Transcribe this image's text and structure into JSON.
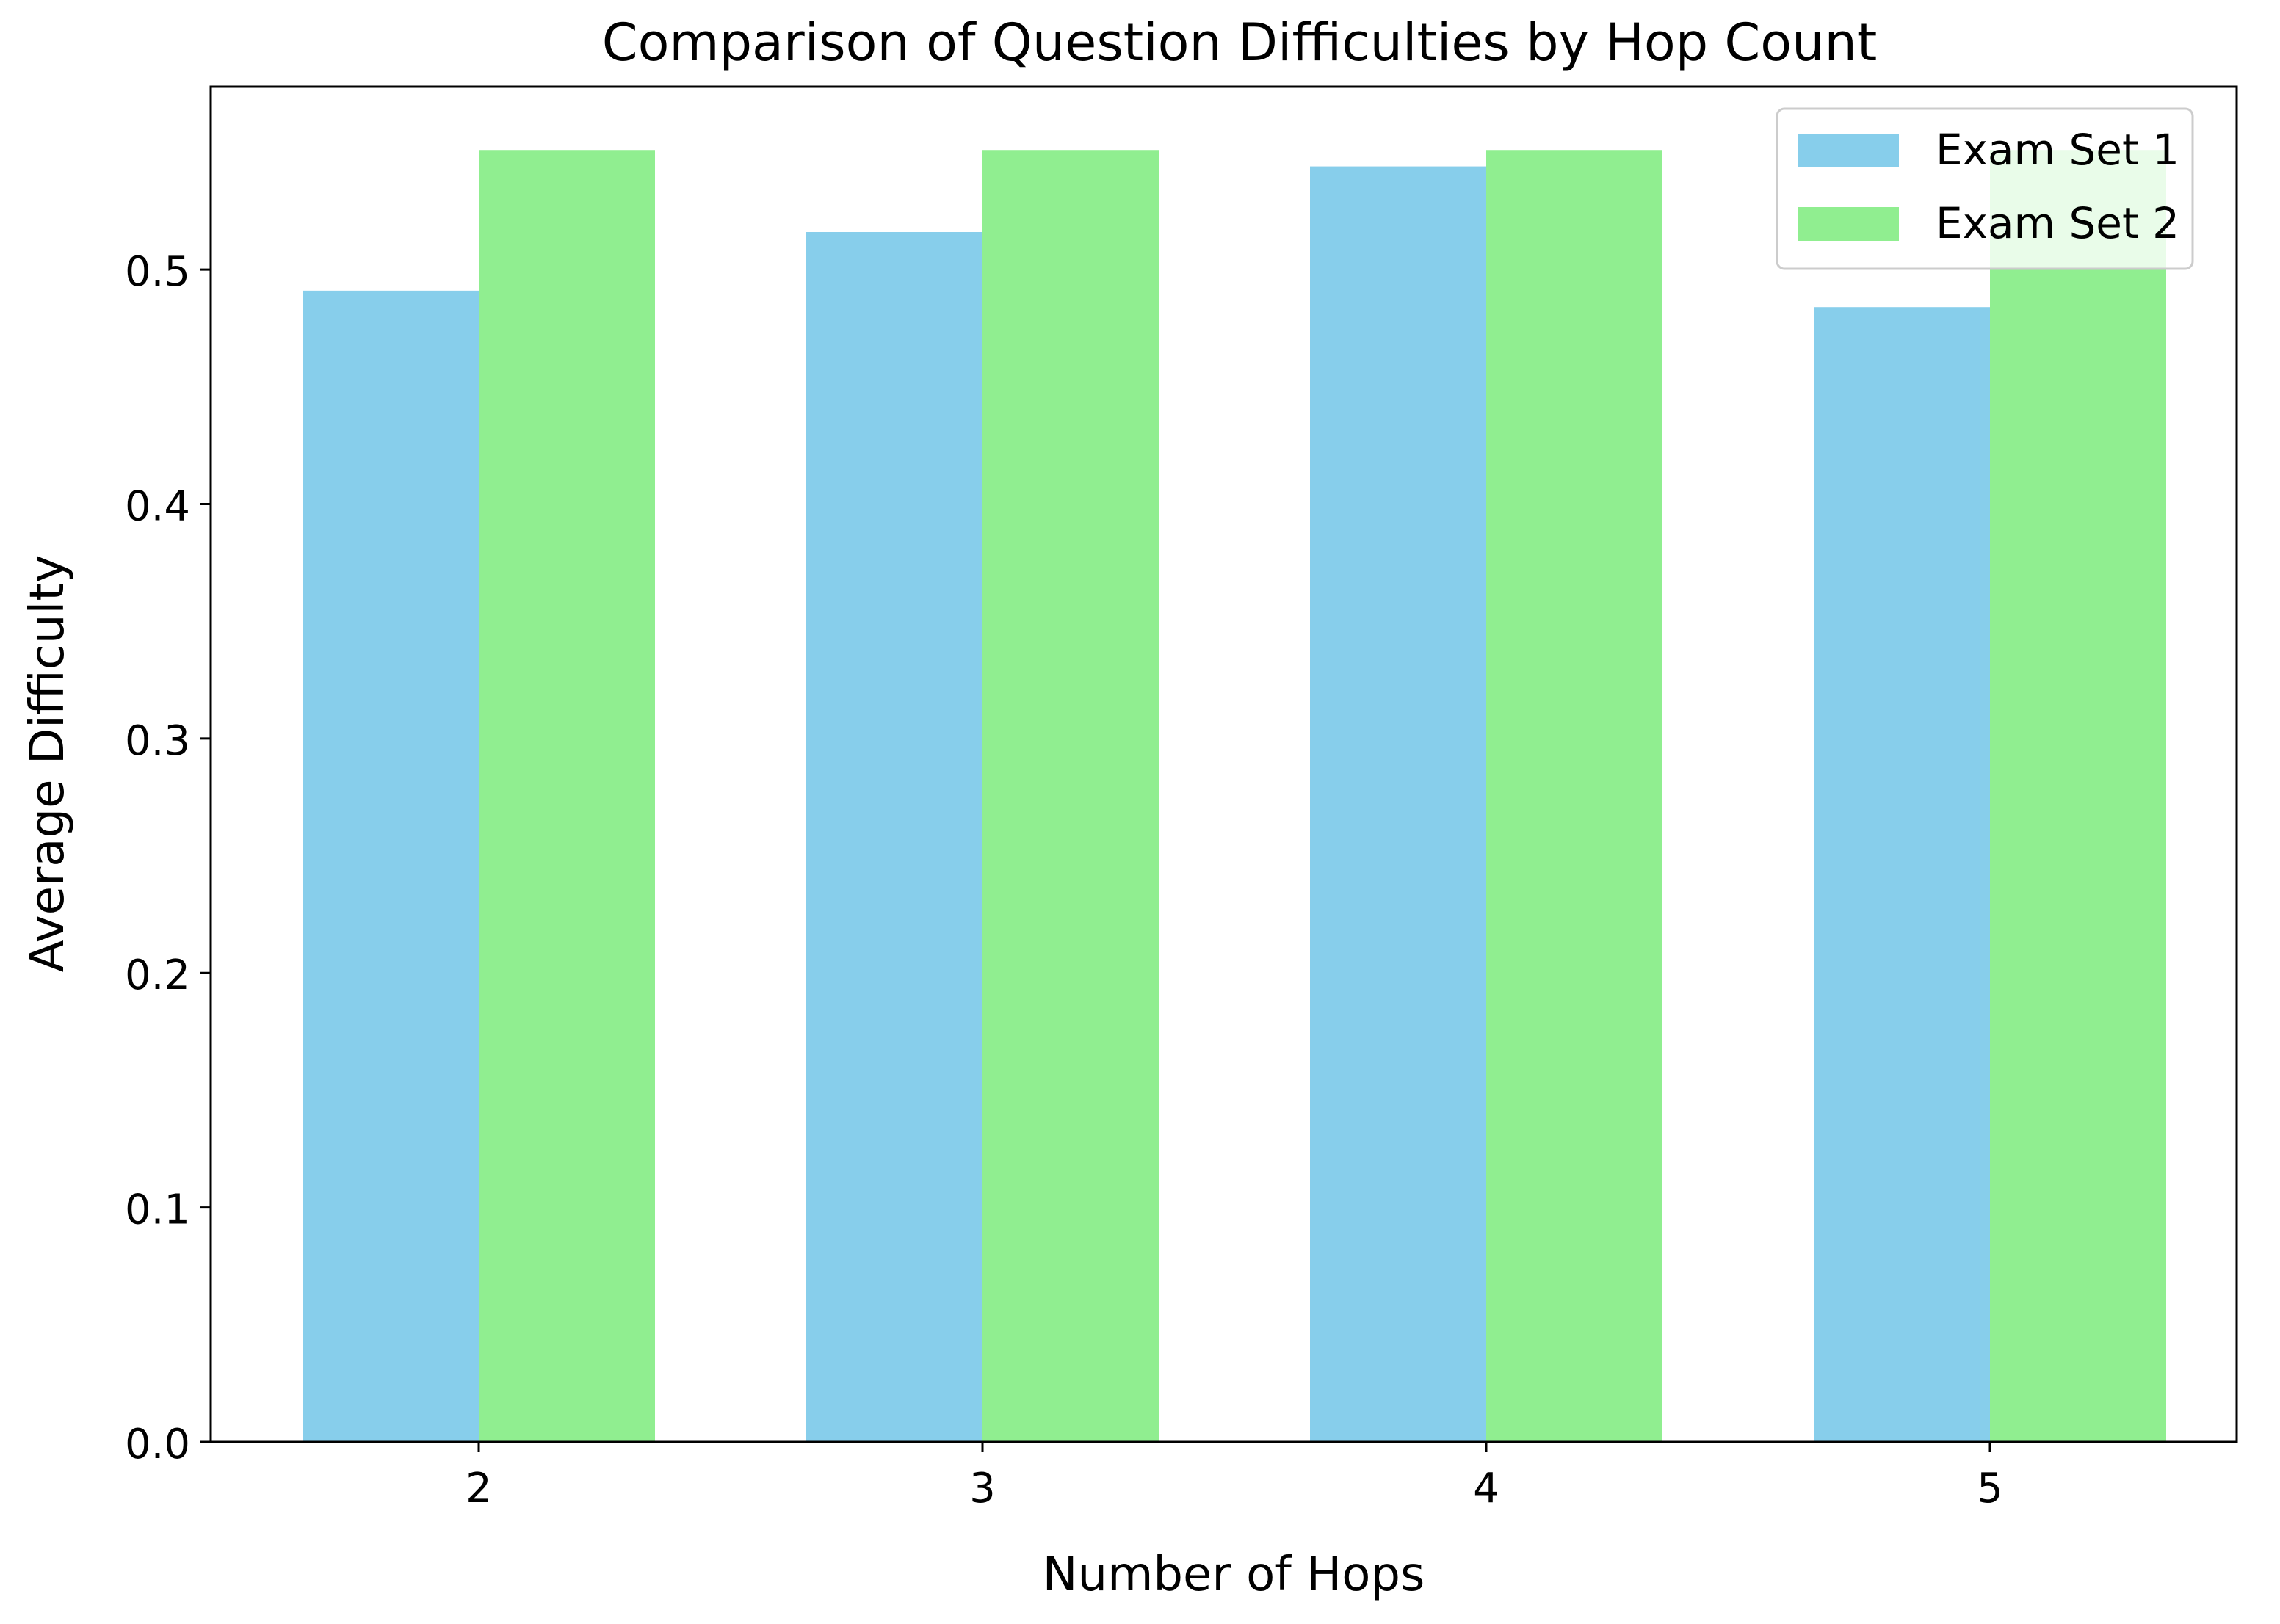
{
  "chart_data": {
    "type": "bar",
    "title": "Comparison of Question Difficulties by Hop Count",
    "xlabel": "Number of Hops",
    "ylabel": "Average Difficulty",
    "categories": [
      "2",
      "3",
      "4",
      "5"
    ],
    "series": [
      {
        "name": "Exam Set 1",
        "color": "#87CEEB",
        "values": [
          0.491,
          0.516,
          0.544,
          0.484
        ]
      },
      {
        "name": "Exam Set 2",
        "color": "#90EE90",
        "values": [
          0.551,
          0.551,
          0.551,
          0.551
        ]
      }
    ],
    "ylim": [
      0,
      0.578
    ],
    "yticks": [
      0.0,
      0.1,
      0.2,
      0.3,
      0.4,
      0.5
    ],
    "ytick_labels": [
      "0.0",
      "0.1",
      "0.2",
      "0.3",
      "0.4",
      "0.5"
    ],
    "grid": false,
    "legend_position": "top-right"
  }
}
